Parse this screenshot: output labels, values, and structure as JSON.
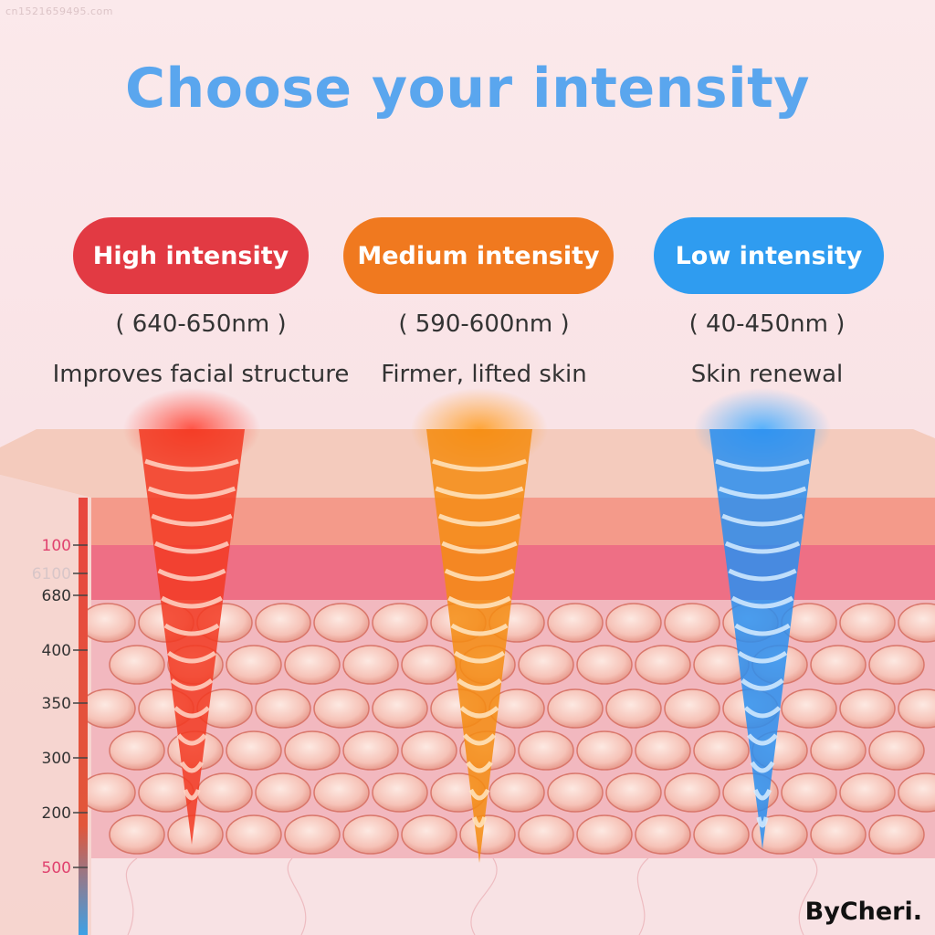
{
  "watermark": "cn1521659495.com",
  "title": "Choose your intensity",
  "levels": [
    {
      "label": "High intensity",
      "range": "( 640-650nm )",
      "benefit": "Improves facial structure",
      "color": "#e23a43"
    },
    {
      "label": "Medium intensity",
      "range": "( 590-600nm )",
      "benefit": "Firmer, lifted skin",
      "color": "#f0791f"
    },
    {
      "label": "Low intensity",
      "range": "( 40-450nm )",
      "benefit": "Skin renewal",
      "color": "#2f9cf0"
    }
  ],
  "depth_ticks": [
    "100",
    "6100",
    "680",
    "400",
    "350",
    "300",
    "200",
    "500"
  ],
  "brand": "ByCheri."
}
